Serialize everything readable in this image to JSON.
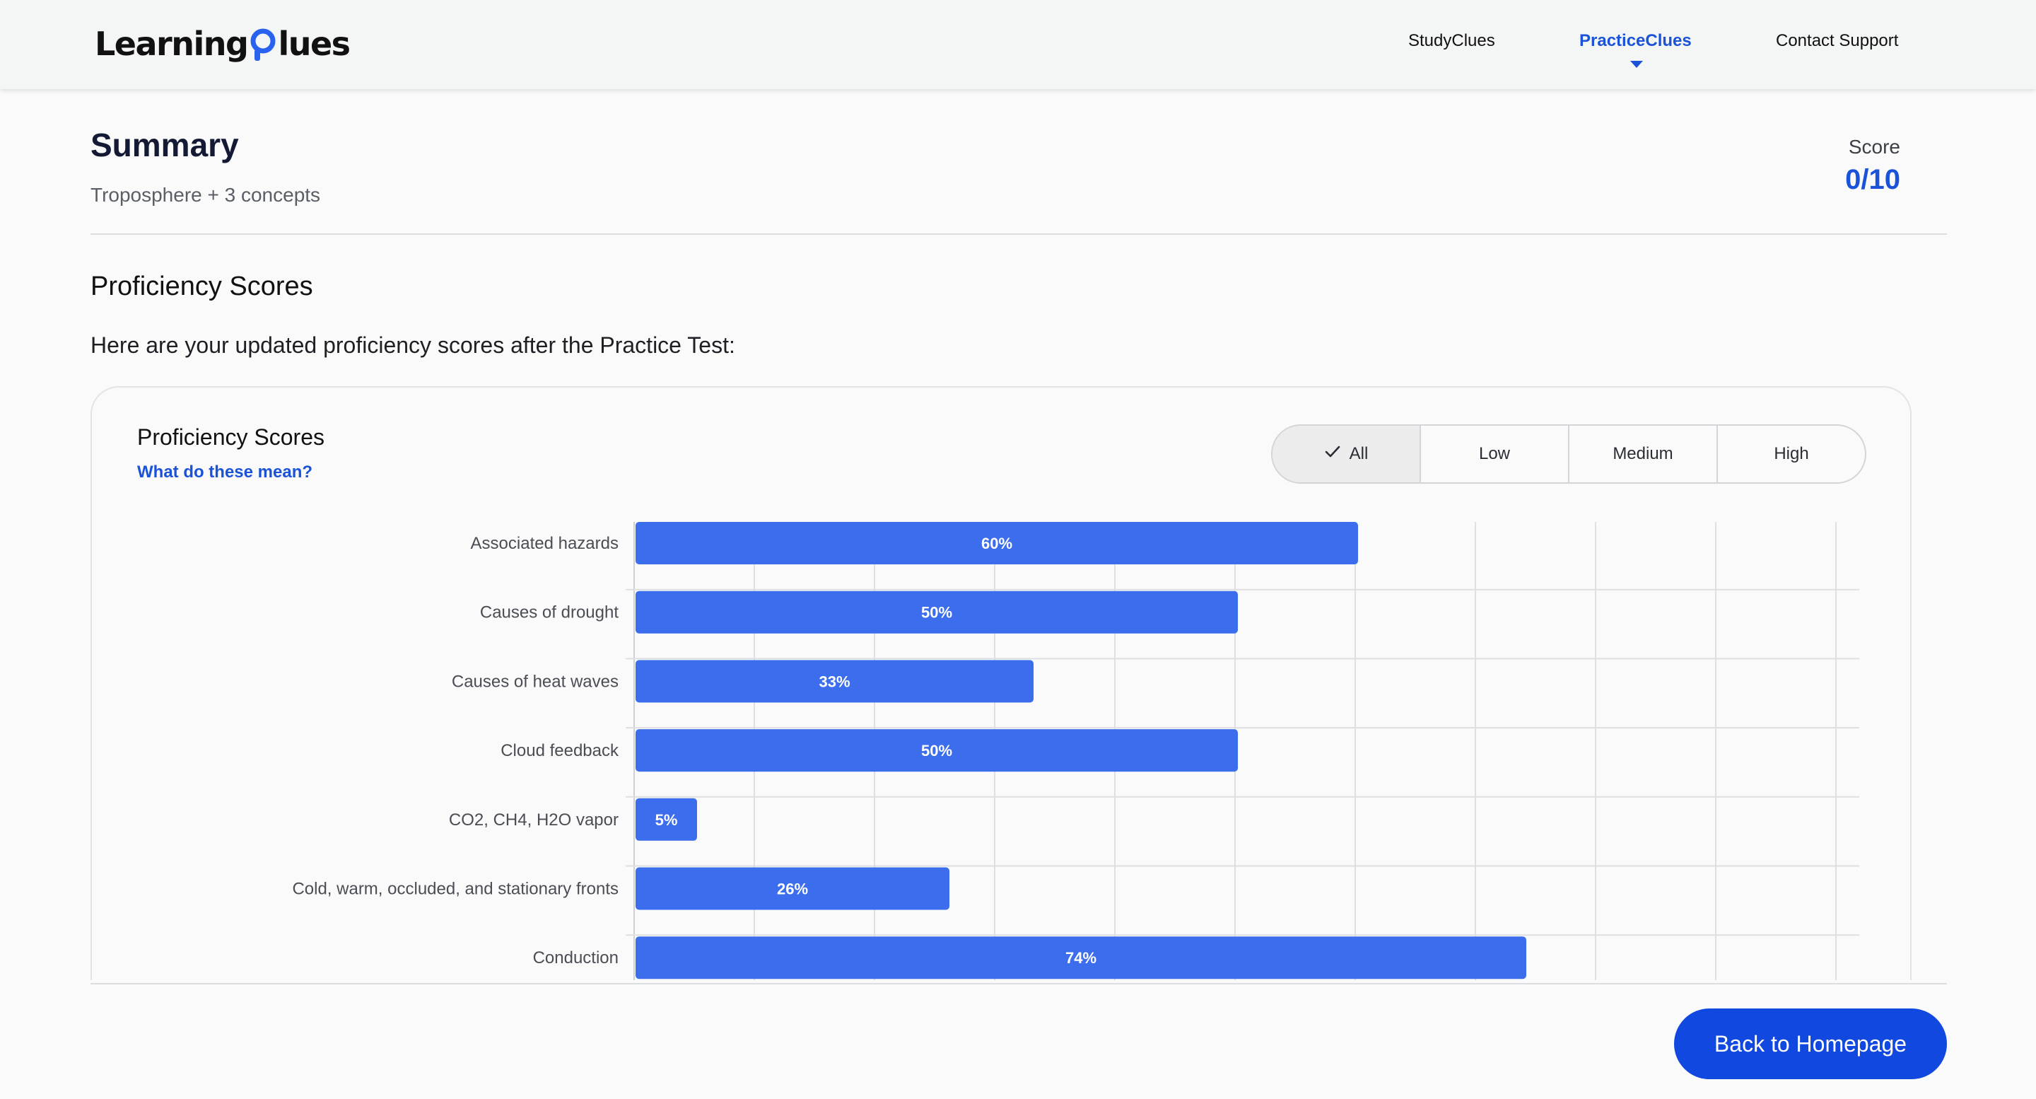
{
  "header": {
    "logo_text_left": "Learning",
    "logo_text_right": "lues",
    "nav": [
      {
        "label": "StudyClues",
        "active": false
      },
      {
        "label": "PracticeClues",
        "active": true
      },
      {
        "label": "Contact Support",
        "active": false
      }
    ]
  },
  "summary": {
    "title": "Summary",
    "subtitle": "Troposphere + 3 concepts",
    "score_label": "Score",
    "score_value": "0/10"
  },
  "proficiency": {
    "section_title": "Proficiency Scores",
    "intro": "Here are your updated proficiency scores after the Practice Test:",
    "card_title": "Proficiency Scores",
    "help_link": "What do these mean?",
    "filters": [
      {
        "label": "All",
        "selected": true
      },
      {
        "label": "Low",
        "selected": false
      },
      {
        "label": "Medium",
        "selected": false
      },
      {
        "label": "High",
        "selected": false
      }
    ]
  },
  "chart_data": {
    "type": "bar",
    "orientation": "horizontal",
    "categories": [
      "Associated hazards",
      "Causes of drought",
      "Causes of heat waves",
      "Cloud feedback",
      "CO2, CH4, H2O vapor",
      "Cold, warm, occluded, and stationary fronts",
      "Conduction"
    ],
    "values": [
      60,
      50,
      33,
      50,
      5,
      26,
      74
    ],
    "value_labels": [
      "60%",
      "50%",
      "33%",
      "50%",
      "5%",
      "26%",
      "74%"
    ],
    "xlim": [
      0,
      100
    ],
    "grid": true,
    "bar_color": "#3b6ded"
  },
  "footer": {
    "back_button": "Back to Homepage"
  },
  "colors": {
    "accent": "#1a53d8",
    "button": "#1148e0",
    "bar": "#3b6ded"
  }
}
